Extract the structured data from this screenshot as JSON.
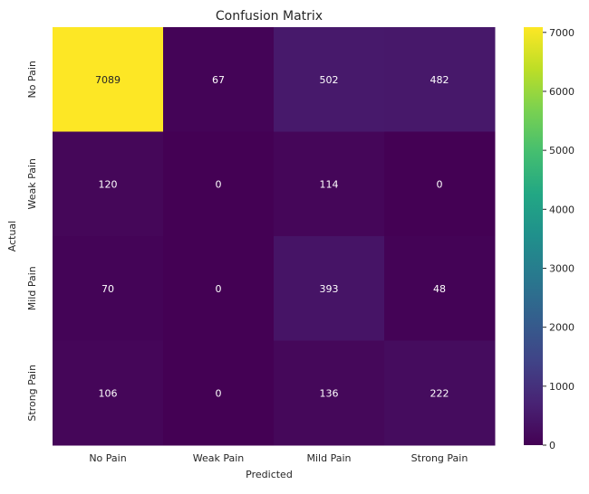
{
  "chart_data": {
    "type": "heatmap",
    "title": "Confusion Matrix",
    "xlabel": "Predicted",
    "ylabel": "Actual",
    "x_categories": [
      "No Pain",
      "Weak Pain",
      "Mild Pain",
      "Strong Pain"
    ],
    "y_categories": [
      "No Pain",
      "Weak Pain",
      "Mild Pain",
      "Strong Pain"
    ],
    "values": [
      [
        7089,
        67,
        502,
        482
      ],
      [
        120,
        0,
        114,
        0
      ],
      [
        70,
        0,
        393,
        48
      ],
      [
        106,
        0,
        136,
        222
      ]
    ],
    "colormap": "viridis",
    "colorbar": {
      "range": [
        0,
        7089
      ],
      "ticks": [
        0,
        1000,
        2000,
        3000,
        4000,
        5000,
        6000,
        7000
      ]
    },
    "annotation_colors": {
      "light": "#ffffff",
      "dark": "#262626"
    },
    "grid": false
  }
}
